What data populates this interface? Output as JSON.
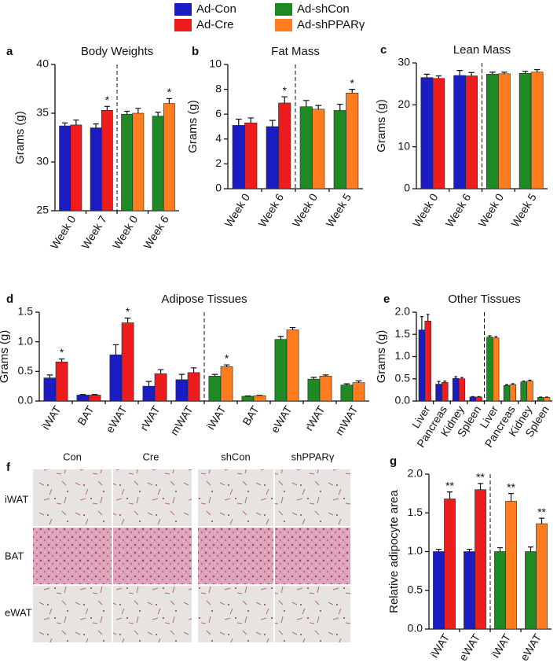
{
  "chart_data": [
    {
      "type": "bar",
      "panel": "a",
      "title": "Body Weights",
      "ylabel": "Grams (g)",
      "categories": [
        "Week 0",
        "Week 7",
        "Week 0",
        "Week 6"
      ],
      "ylim": [
        25,
        40
      ],
      "yticks": [
        25,
        30,
        35,
        40
      ],
      "series": [
        {
          "name": "Ad-Con",
          "color": "#1c1cc4",
          "values": [
            33.7,
            33.5,
            null,
            null
          ],
          "errors": [
            0.3,
            0.4,
            null,
            null
          ],
          "significance": [
            null,
            null,
            null,
            null
          ]
        },
        {
          "name": "Ad-Cre",
          "color": "#ee1d1d",
          "values": [
            33.8,
            35.3,
            null,
            null
          ],
          "errors": [
            0.5,
            0.4,
            null,
            null
          ],
          "significance": [
            null,
            "*",
            null,
            null
          ]
        },
        {
          "name": "Ad-shCon",
          "color": "#1f8a24",
          "values": [
            null,
            null,
            34.9,
            34.7
          ],
          "errors": [
            null,
            null,
            0.3,
            0.4
          ],
          "significance": [
            null,
            null,
            null,
            null
          ]
        },
        {
          "name": "Ad-shPPARγ",
          "color": "#ff7c1f",
          "values": [
            null,
            null,
            35.0,
            36.0
          ],
          "errors": [
            null,
            null,
            0.5,
            0.5
          ],
          "significance": [
            null,
            null,
            null,
            "*"
          ]
        }
      ]
    },
    {
      "type": "bar",
      "panel": "b",
      "title": "Fat Mass",
      "ylabel": "Grams (g)",
      "categories": [
        "Week 0",
        "Week 6",
        "Week 0",
        "Week 5"
      ],
      "ylim": [
        0,
        10
      ],
      "yticks": [
        0,
        2,
        4,
        6,
        8,
        10
      ],
      "series": [
        {
          "name": "Ad-Con",
          "color": "#1c1cc4",
          "values": [
            5.1,
            5.0,
            null,
            null
          ],
          "errors": [
            0.5,
            0.5,
            null,
            null
          ],
          "significance": [
            null,
            null,
            null,
            null
          ]
        },
        {
          "name": "Ad-Cre",
          "color": "#ee1d1d",
          "values": [
            5.3,
            6.9,
            null,
            null
          ],
          "errors": [
            0.4,
            0.5,
            null,
            null
          ],
          "significance": [
            null,
            "*",
            null,
            null
          ]
        },
        {
          "name": "Ad-shCon",
          "color": "#1f8a24",
          "values": [
            null,
            null,
            6.6,
            6.3
          ],
          "errors": [
            null,
            null,
            0.5,
            0.5
          ],
          "significance": [
            null,
            null,
            null,
            null
          ]
        },
        {
          "name": "Ad-shPPARγ",
          "color": "#ff7c1f",
          "values": [
            null,
            null,
            6.4,
            7.7
          ],
          "errors": [
            null,
            null,
            0.3,
            0.3
          ],
          "significance": [
            null,
            null,
            null,
            "*"
          ]
        }
      ]
    },
    {
      "type": "bar",
      "panel": "c",
      "title": "Lean Mass",
      "ylabel": "Grams (g)",
      "categories": [
        "Week 0",
        "Week 6",
        "Week 0",
        "Week 5"
      ],
      "ylim": [
        0,
        30
      ],
      "yticks": [
        0,
        10,
        20,
        30
      ],
      "series": [
        {
          "name": "Ad-Con",
          "color": "#1c1cc4",
          "values": [
            26.5,
            27.0,
            null,
            null
          ],
          "errors": [
            0.8,
            1.2,
            null,
            null
          ],
          "significance": [
            null,
            null,
            null,
            null
          ]
        },
        {
          "name": "Ad-Cre",
          "color": "#ee1d1d",
          "values": [
            26.3,
            26.9,
            null,
            null
          ],
          "errors": [
            0.6,
            0.8,
            null,
            null
          ],
          "significance": [
            null,
            null,
            null,
            null
          ]
        },
        {
          "name": "Ad-shCon",
          "color": "#1f8a24",
          "values": [
            null,
            null,
            27.3,
            27.5
          ],
          "errors": [
            null,
            null,
            0.5,
            0.5
          ],
          "significance": [
            null,
            null,
            null,
            null
          ]
        },
        {
          "name": "Ad-shPPARγ",
          "color": "#ff7c1f",
          "values": [
            null,
            null,
            27.4,
            27.8
          ],
          "errors": [
            null,
            null,
            0.4,
            0.6
          ],
          "significance": [
            null,
            null,
            null,
            null
          ]
        }
      ]
    },
    {
      "type": "bar",
      "panel": "d",
      "title": "Adipose Tissues",
      "ylabel": "Grams (g)",
      "categories": [
        "iWAT",
        "BAT",
        "eWAT",
        "rWAT",
        "mWAT",
        "iWAT",
        "BAT",
        "eWAT",
        "rWAT",
        "mWAT"
      ],
      "ylim": [
        0,
        1.5
      ],
      "yticks": [
        {
          "value": 0,
          "label": "0.0"
        },
        0.5,
        {
          "value": 1,
          "label": "1.0"
        },
        1.5
      ],
      "series": [
        {
          "name": "Ad-Con",
          "color": "#1c1cc4",
          "values": [
            0.39,
            0.1,
            0.78,
            0.25,
            0.36,
            null,
            null,
            null,
            null,
            null
          ],
          "errors": [
            0.05,
            0.01,
            0.17,
            0.08,
            0.09,
            null,
            null,
            null,
            null,
            null
          ],
          "significance": [
            null,
            null,
            null,
            null,
            null,
            null,
            null,
            null,
            null,
            null
          ]
        },
        {
          "name": "Ad-Cre",
          "color": "#ee1d1d",
          "values": [
            0.66,
            0.1,
            1.32,
            0.46,
            0.48,
            null,
            null,
            null,
            null,
            null
          ],
          "errors": [
            0.05,
            0.01,
            0.08,
            0.07,
            0.08,
            null,
            null,
            null,
            null,
            null
          ],
          "significance": [
            "*",
            null,
            "*",
            null,
            null,
            null,
            null,
            null,
            null,
            null
          ]
        },
        {
          "name": "Ad-shCon",
          "color": "#1f8a24",
          "values": [
            null,
            null,
            null,
            null,
            null,
            0.42,
            0.08,
            1.04,
            0.37,
            0.27
          ],
          "errors": [
            null,
            null,
            null,
            null,
            null,
            0.03,
            0.005,
            0.05,
            0.03,
            0.02
          ],
          "significance": [
            null,
            null,
            null,
            null,
            null,
            null,
            null,
            null,
            null,
            null
          ]
        },
        {
          "name": "Ad-shPPARγ",
          "color": "#ff7c1f",
          "values": [
            null,
            null,
            null,
            null,
            null,
            0.58,
            0.09,
            1.2,
            0.42,
            0.31
          ],
          "errors": [
            null,
            null,
            null,
            null,
            null,
            0.03,
            0.005,
            0.04,
            0.02,
            0.03
          ],
          "significance": [
            null,
            null,
            null,
            null,
            null,
            "*",
            null,
            null,
            null,
            null
          ]
        }
      ]
    },
    {
      "type": "bar",
      "panel": "e",
      "title": "Other Tissues",
      "ylabel": "Grams (g)",
      "categories": [
        "Liver",
        "Pancreas",
        "Kidney",
        "Spleen",
        "Liver",
        "Pancreas",
        "Kidney",
        "Spleen"
      ],
      "ylim": [
        0,
        2
      ],
      "yticks": [
        {
          "value": 0,
          "label": "0.0"
        },
        0.5,
        {
          "value": 1,
          "label": "1.0"
        },
        1.5,
        {
          "value": 2,
          "label": "2.0"
        }
      ],
      "series": [
        {
          "name": "Ad-Con",
          "color": "#1c1cc4",
          "values": [
            1.6,
            0.38,
            0.51,
            0.09,
            null,
            null,
            null,
            null
          ],
          "errors": [
            0.3,
            0.06,
            0.04,
            0.01,
            null,
            null,
            null,
            null
          ],
          "significance": [
            null,
            null,
            null,
            null,
            null,
            null,
            null,
            null
          ]
        },
        {
          "name": "Ad-Cre",
          "color": "#ee1d1d",
          "values": [
            1.8,
            0.42,
            0.5,
            0.09,
            null,
            null,
            null,
            null
          ],
          "errors": [
            0.15,
            0.03,
            0.03,
            0.01,
            null,
            null,
            null,
            null
          ],
          "significance": [
            null,
            null,
            null,
            null,
            null,
            null,
            null,
            null
          ]
        },
        {
          "name": "Ad-shCon",
          "color": "#1f8a24",
          "values": [
            null,
            null,
            null,
            null,
            1.44,
            0.35,
            0.43,
            0.08
          ],
          "errors": [
            null,
            null,
            null,
            null,
            0.03,
            0.02,
            0.02,
            0.01
          ],
          "significance": [
            null,
            null,
            null,
            null,
            null,
            null,
            null,
            null
          ]
        },
        {
          "name": "Ad-shPPARγ",
          "color": "#ff7c1f",
          "values": [
            null,
            null,
            null,
            null,
            1.42,
            0.37,
            0.45,
            0.08
          ],
          "errors": [
            null,
            null,
            null,
            null,
            0.03,
            0.02,
            0.02,
            0.01
          ],
          "significance": [
            null,
            null,
            null,
            null,
            null,
            null,
            null,
            null
          ]
        }
      ]
    },
    {
      "type": "bar",
      "panel": "g",
      "ylabel": "Relative adipocyte area",
      "categories": [
        "iWAT",
        "eWAT",
        "iWAT",
        "eWAT"
      ],
      "ylim": [
        0,
        2
      ],
      "yticks": [
        {
          "value": 0,
          "label": "0.0"
        },
        0.5,
        {
          "value": 1,
          "label": "1.0"
        },
        1.5,
        {
          "value": 2,
          "label": "2.0"
        }
      ],
      "series": [
        {
          "name": "Ad-Con",
          "color": "#1c1cc4",
          "values": [
            1.0,
            1.0,
            null,
            null
          ],
          "errors": [
            0.03,
            0.03,
            null,
            null
          ],
          "significance": [
            null,
            null,
            null,
            null
          ]
        },
        {
          "name": "Ad-Cre",
          "color": "#ee1d1d",
          "values": [
            1.68,
            1.8,
            null,
            null
          ],
          "errors": [
            0.09,
            0.08,
            null,
            null
          ],
          "significance": [
            "**",
            "**",
            null,
            null
          ]
        },
        {
          "name": "Ad-shCon",
          "color": "#1f8a24",
          "values": [
            null,
            null,
            1.0,
            1.0
          ],
          "errors": [
            null,
            null,
            0.05,
            0.06
          ],
          "significance": [
            null,
            null,
            null,
            null
          ]
        },
        {
          "name": "Ad-shPPARγ",
          "color": "#ff7c1f",
          "values": [
            null,
            null,
            1.65,
            1.36
          ],
          "errors": [
            null,
            null,
            0.1,
            0.07
          ],
          "significance": [
            null,
            null,
            "**",
            "**"
          ]
        }
      ]
    }
  ],
  "histology": {
    "panel": "f",
    "columns": [
      "Con",
      "Cre",
      "shCon",
      "shPPARγ"
    ],
    "rows": [
      "iWAT",
      "BAT",
      "eWAT"
    ]
  }
}
